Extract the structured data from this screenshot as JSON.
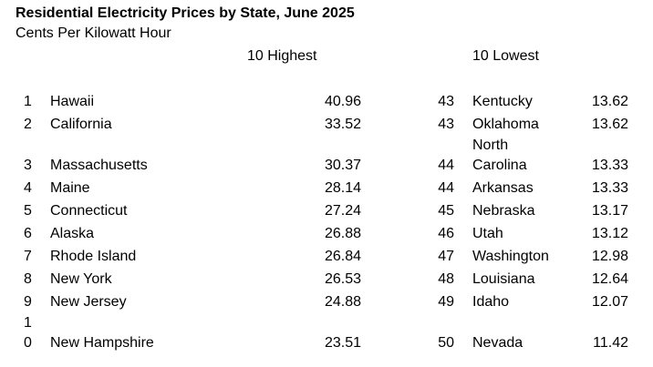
{
  "title": "Residential Electricity Prices by State, June 2025",
  "subtitle": "Cents Per Kilowatt Hour",
  "highest_header": "10 Highest",
  "lowest_header": "10 Lowest",
  "highest": [
    {
      "rank": "1",
      "state": "Hawaii",
      "price": "40.96"
    },
    {
      "rank": "2",
      "state": "California",
      "price": "33.52"
    },
    {
      "rank": "3",
      "state": "Massachusetts",
      "price": "30.37"
    },
    {
      "rank": "4",
      "state": "Maine",
      "price": "28.14"
    },
    {
      "rank": "5",
      "state": "Connecticut",
      "price": "27.24"
    },
    {
      "rank": "6",
      "state": "Alaska",
      "price": "26.88"
    },
    {
      "rank": "7",
      "state": "Rhode Island",
      "price": "26.84"
    },
    {
      "rank": "8",
      "state": "New York",
      "price": "26.53"
    },
    {
      "rank": "9",
      "state": "New Jersey",
      "price": "24.88"
    },
    {
      "rank_line1": "1",
      "rank_line2": "0",
      "state": "New Hampshire",
      "price": "23.51"
    }
  ],
  "lowest": [
    {
      "rank": "43",
      "state": "Kentucky",
      "price": "13.62"
    },
    {
      "rank": "43",
      "state": "Oklahoma",
      "price": "13.62"
    },
    {
      "rank": "44",
      "state_line1": "North",
      "state_line2": "Carolina",
      "price": "13.33"
    },
    {
      "rank": "44",
      "state": "Arkansas",
      "price": "13.33"
    },
    {
      "rank": "45",
      "state": "Nebraska",
      "price": "13.17"
    },
    {
      "rank": "46",
      "state": "Utah",
      "price": "13.12"
    },
    {
      "rank": "47",
      "state": "Washington",
      "price": "12.98"
    },
    {
      "rank": "48",
      "state": "Louisiana",
      "price": "12.64"
    },
    {
      "rank": "49",
      "state": "Idaho",
      "price": "12.07"
    },
    {
      "rank": "50",
      "state": "Nevada",
      "price": "11.42"
    }
  ]
}
